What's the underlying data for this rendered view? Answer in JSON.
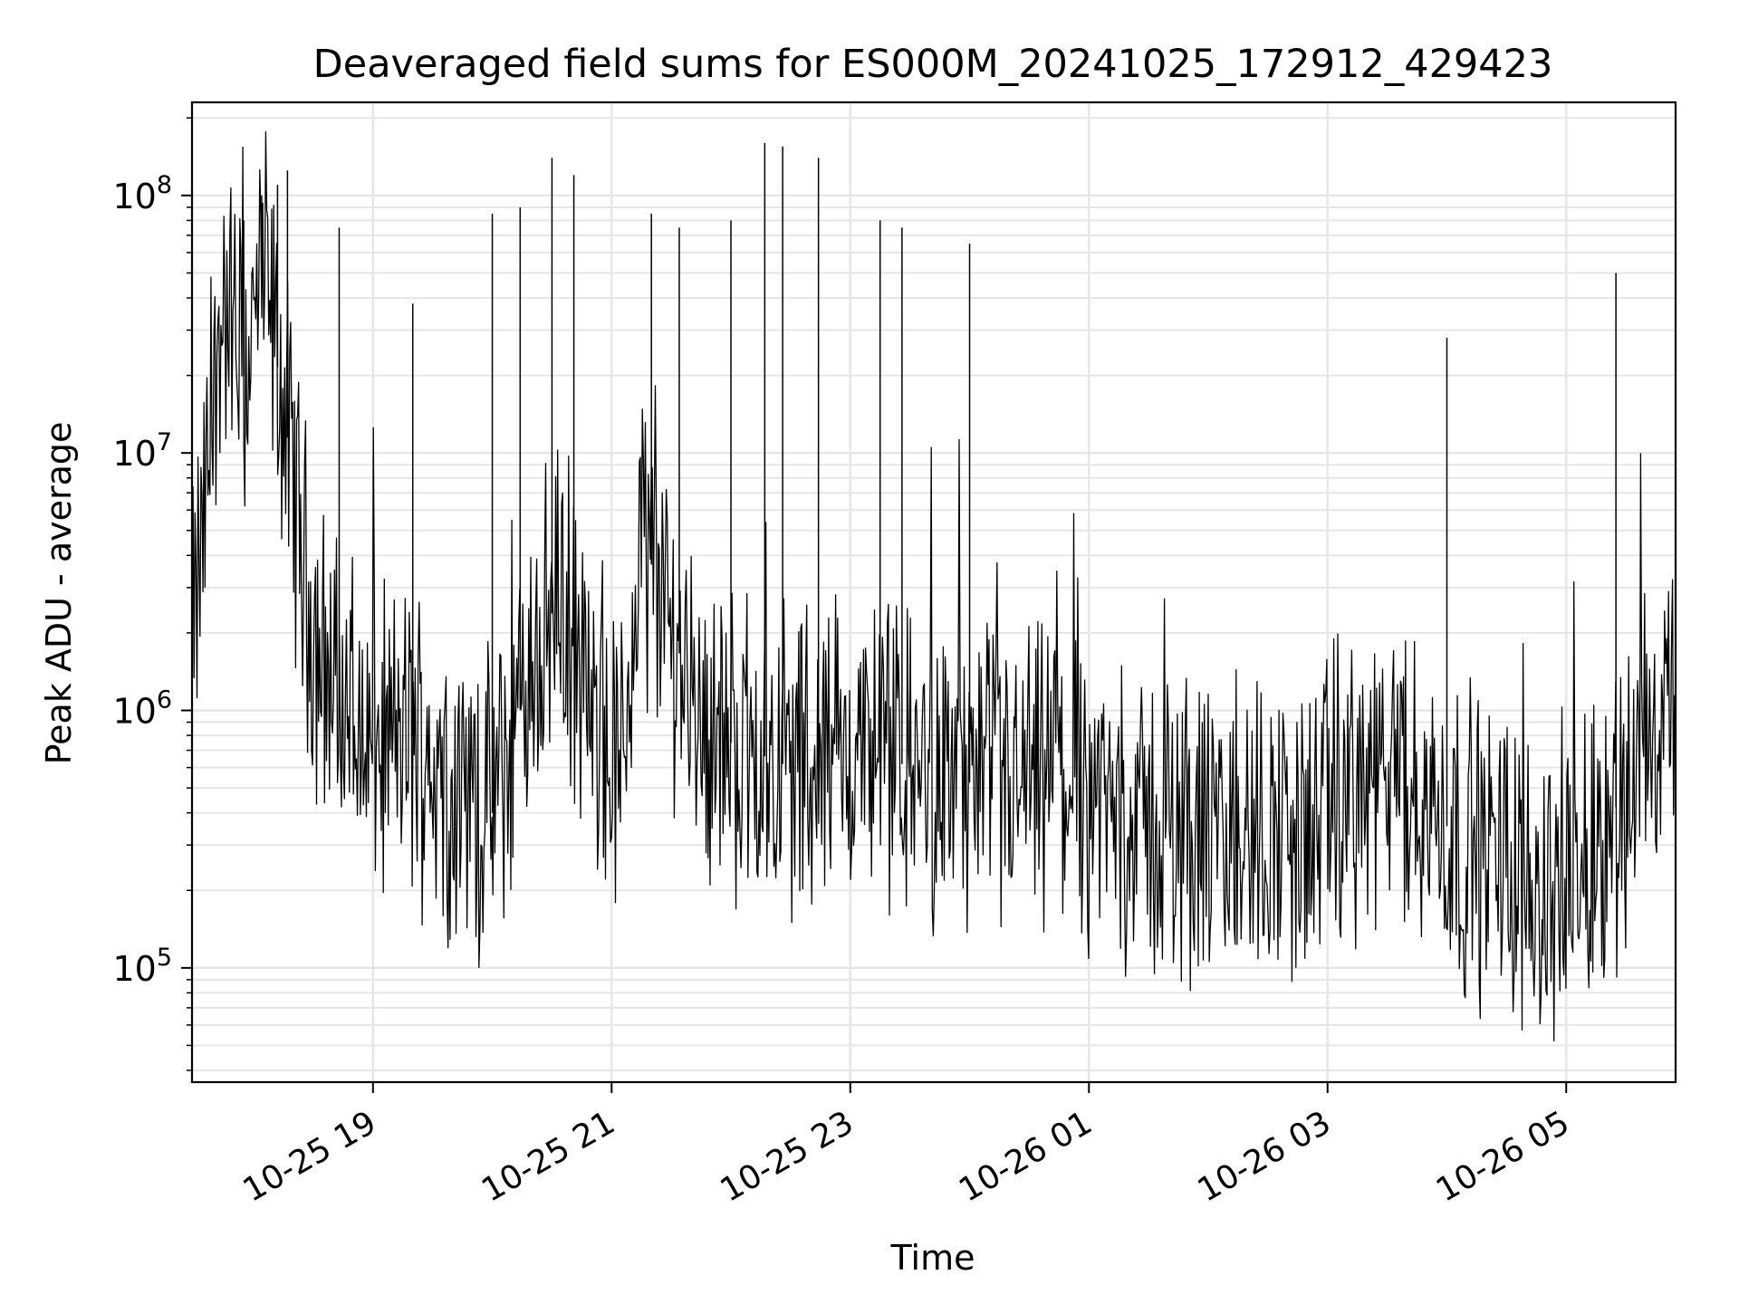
{
  "chart_data": {
    "type": "line",
    "title": "Deaveraged field sums for ES000M_20241025_172912_429423",
    "xlabel": "Time",
    "ylabel": "Peak ADU - average",
    "yscale": "log",
    "ylim": [
      36000,
      230000000
    ],
    "xlim": [
      "2024-10-25 17:29",
      "2024-10-26 05:55"
    ],
    "grid": true,
    "line_color": "#000000",
    "grid_color": "#e6e6e6",
    "x_ticks": [
      {
        "label": "10-25 19",
        "t": "2024-10-25 19:00"
      },
      {
        "label": "10-25 21",
        "t": "2024-10-25 21:00"
      },
      {
        "label": "10-25 23",
        "t": "2024-10-25 23:00"
      },
      {
        "label": "10-26 01",
        "t": "2024-10-26 01:00"
      },
      {
        "label": "10-26 03",
        "t": "2024-10-26 03:00"
      },
      {
        "label": "10-26 05",
        "t": "2024-10-26 05:00"
      }
    ],
    "y_ticks": [
      {
        "base": "10",
        "exp": "5",
        "value": 100000
      },
      {
        "base": "10",
        "exp": "6",
        "value": 1000000
      },
      {
        "base": "10",
        "exp": "7",
        "value": 10000000
      },
      {
        "base": "10",
        "exp": "8",
        "value": 100000000
      }
    ],
    "series": [
      {
        "x": [
          "2024-10-25 17:30",
          "2024-10-25 17:45",
          "2024-10-25 17:55",
          "2024-10-25 18:05",
          "2024-10-25 18:15",
          "2024-10-25 18:30",
          "2024-10-25 18:45",
          "2024-10-25 19:00",
          "2024-10-25 19:20",
          "2024-10-25 19:40",
          "2024-10-25 20:00",
          "2024-10-25 20:20",
          "2024-10-25 20:35",
          "2024-10-25 20:50",
          "2024-10-25 21:05",
          "2024-10-25 21:15",
          "2024-10-25 21:30",
          "2024-10-25 21:50",
          "2024-10-25 22:10",
          "2024-10-25 22:30",
          "2024-10-25 22:50",
          "2024-10-25 23:10",
          "2024-10-25 23:30",
          "2024-10-25 23:50",
          "2024-10-26 00:10",
          "2024-10-26 00:30",
          "2024-10-26 00:50",
          "2024-10-26 01:10",
          "2024-10-26 01:30",
          "2024-10-26 01:50",
          "2024-10-26 02:10",
          "2024-10-26 02:30",
          "2024-10-26 02:50",
          "2024-10-26 03:10",
          "2024-10-26 03:30",
          "2024-10-26 03:50",
          "2024-10-26 04:10",
          "2024-10-26 04:30",
          "2024-10-26 04:50",
          "2024-10-26 05:10",
          "2024-10-26 05:30",
          "2024-10-26 05:50"
        ],
        "y": [
          2000000,
          40000000,
          20000000,
          50000000,
          15000000,
          2000000,
          1000000,
          700000,
          800000,
          500000,
          400000,
          1500000,
          3000000,
          800000,
          600000,
          5000000,
          2000000,
          800000,
          700000,
          600000,
          650000,
          700000,
          600000,
          550000,
          500000,
          500000,
          550000,
          400000,
          350000,
          330000,
          300000,
          350000,
          320000,
          500000,
          500000,
          420000,
          300000,
          250000,
          200000,
          250000,
          500000,
          900000
        ]
      }
    ],
    "spikes": [
      {
        "t": "2024-10-25 17:55",
        "y": 80000000
      },
      {
        "t": "2024-10-25 18:04",
        "y": 100000000
      },
      {
        "t": "2024-10-25 18:12",
        "y": 110000000
      },
      {
        "t": "2024-10-25 18:17",
        "y": 125000000
      },
      {
        "t": "2024-10-25 18:43",
        "y": 75000000
      },
      {
        "t": "2024-10-25 19:20",
        "y": 38000000
      },
      {
        "t": "2024-10-25 20:00",
        "y": 85000000
      },
      {
        "t": "2024-10-25 20:14",
        "y": 90000000
      },
      {
        "t": "2024-10-25 20:30",
        "y": 140000000
      },
      {
        "t": "2024-10-25 20:41",
        "y": 120000000
      },
      {
        "t": "2024-10-25 21:20",
        "y": 85000000
      },
      {
        "t": "2024-10-25 21:34",
        "y": 75000000
      },
      {
        "t": "2024-10-25 22:00",
        "y": 80000000
      },
      {
        "t": "2024-10-25 22:17",
        "y": 160000000
      },
      {
        "t": "2024-10-25 22:26",
        "y": 155000000
      },
      {
        "t": "2024-10-25 22:44",
        "y": 140000000
      },
      {
        "t": "2024-10-25 23:15",
        "y": 80000000
      },
      {
        "t": "2024-10-25 23:26",
        "y": 75000000
      },
      {
        "t": "2024-10-26 00:00",
        "y": 65000000
      },
      {
        "t": "2024-10-26 04:00",
        "y": 28000000
      },
      {
        "t": "2024-10-26 05:25",
        "y": 50000000
      }
    ]
  }
}
